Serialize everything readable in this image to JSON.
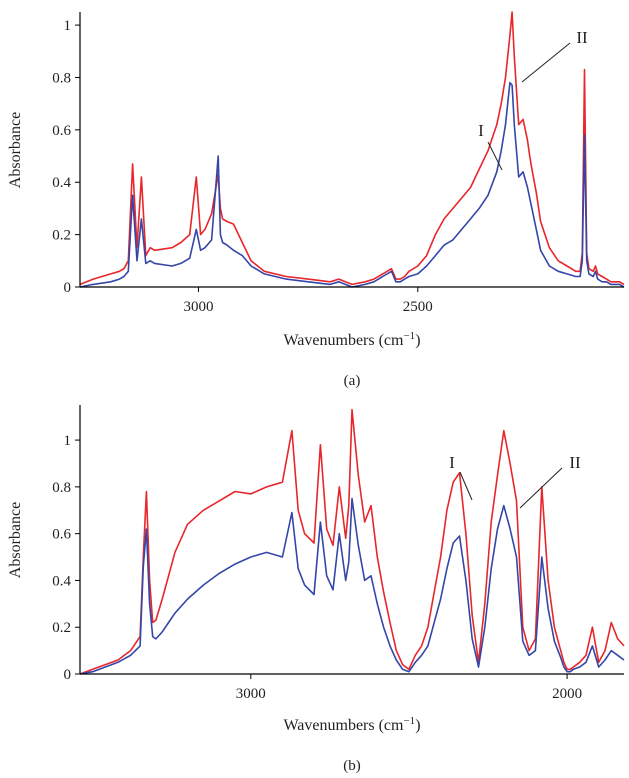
{
  "colors": {
    "series_I": "#e8262b",
    "series_II": "#3446a8",
    "axis": "#000000"
  },
  "chart_data": [
    {
      "panel": "(a)",
      "type": "line",
      "xlabel": "Wavenumbers (cm−1)",
      "ylabel": "Absorbance",
      "xlim": [
        3270,
        2030
      ],
      "ylim": [
        0,
        1.05
      ],
      "xticks": [
        3000,
        2500
      ],
      "yticks": [
        0,
        0.2,
        0.4,
        0.6,
        0.8,
        1
      ],
      "ytick_labels": [
        "0",
        "0.2",
        "0.4",
        "0.6",
        "0.8",
        "1"
      ],
      "grid": false,
      "annotations": [
        {
          "text": "I",
          "series": 0
        },
        {
          "text": "II",
          "series": 1
        }
      ],
      "series": [
        {
          "label": "I",
          "color": "#e8262b",
          "x": [
            3270,
            3240,
            3200,
            3180,
            3170,
            3160,
            3150,
            3140,
            3130,
            3120,
            3110,
            3100,
            3060,
            3040,
            3020,
            3005,
            2995,
            2985,
            2970,
            2955,
            2950,
            2945,
            2935,
            2920,
            2900,
            2880,
            2850,
            2800,
            2750,
            2700,
            2680,
            2665,
            2650,
            2620,
            2600,
            2580,
            2560,
            2555,
            2550,
            2540,
            2530,
            2520,
            2500,
            2480,
            2460,
            2440,
            2420,
            2400,
            2380,
            2360,
            2340,
            2320,
            2310,
            2300,
            2295,
            2290,
            2285,
            2280,
            2270,
            2260,
            2250,
            2245,
            2240,
            2230,
            2220,
            2200,
            2180,
            2160,
            2140,
            2130,
            2125,
            2120,
            2115,
            2110,
            2100,
            2095,
            2090,
            2080,
            2070,
            2060,
            2050,
            2040,
            2030
          ],
          "y": [
            0.01,
            0.03,
            0.05,
            0.06,
            0.07,
            0.1,
            0.47,
            0.15,
            0.42,
            0.12,
            0.15,
            0.14,
            0.15,
            0.17,
            0.2,
            0.42,
            0.2,
            0.22,
            0.28,
            0.43,
            0.3,
            0.26,
            0.25,
            0.24,
            0.17,
            0.1,
            0.06,
            0.04,
            0.03,
            0.02,
            0.03,
            0.02,
            0.01,
            0.02,
            0.03,
            0.05,
            0.07,
            0.05,
            0.03,
            0.03,
            0.04,
            0.06,
            0.08,
            0.12,
            0.2,
            0.26,
            0.3,
            0.34,
            0.38,
            0.45,
            0.52,
            0.62,
            0.7,
            0.8,
            0.88,
            0.96,
            1.05,
            0.88,
            0.62,
            0.64,
            0.56,
            0.5,
            0.45,
            0.36,
            0.25,
            0.15,
            0.1,
            0.08,
            0.06,
            0.06,
            0.13,
            0.83,
            0.13,
            0.07,
            0.06,
            0.08,
            0.05,
            0.04,
            0.03,
            0.02,
            0.02,
            0.02,
            0.01
          ]
        },
        {
          "label": "II",
          "color": "#3446a8",
          "x": [
            3270,
            3240,
            3200,
            3180,
            3170,
            3160,
            3150,
            3140,
            3130,
            3120,
            3110,
            3100,
            3060,
            3040,
            3020,
            3005,
            2995,
            2985,
            2970,
            2955,
            2950,
            2945,
            2935,
            2920,
            2900,
            2880,
            2850,
            2800,
            2750,
            2700,
            2680,
            2665,
            2650,
            2620,
            2600,
            2580,
            2560,
            2555,
            2550,
            2540,
            2530,
            2520,
            2500,
            2480,
            2460,
            2440,
            2420,
            2400,
            2380,
            2360,
            2340,
            2320,
            2310,
            2300,
            2295,
            2290,
            2285,
            2280,
            2270,
            2260,
            2250,
            2245,
            2240,
            2230,
            2220,
            2200,
            2180,
            2160,
            2140,
            2130,
            2125,
            2120,
            2115,
            2110,
            2100,
            2095,
            2090,
            2080,
            2070,
            2060,
            2050,
            2040,
            2030
          ],
          "y": [
            0.0,
            0.01,
            0.02,
            0.03,
            0.04,
            0.06,
            0.35,
            0.1,
            0.26,
            0.09,
            0.1,
            0.09,
            0.08,
            0.09,
            0.11,
            0.22,
            0.14,
            0.15,
            0.18,
            0.5,
            0.2,
            0.17,
            0.16,
            0.14,
            0.12,
            0.08,
            0.05,
            0.03,
            0.02,
            0.01,
            0.02,
            0.01,
            0.0,
            0.01,
            0.02,
            0.04,
            0.06,
            0.04,
            0.02,
            0.02,
            0.03,
            0.04,
            0.05,
            0.08,
            0.12,
            0.16,
            0.18,
            0.22,
            0.26,
            0.3,
            0.35,
            0.44,
            0.52,
            0.62,
            0.7,
            0.78,
            0.77,
            0.62,
            0.42,
            0.44,
            0.38,
            0.34,
            0.3,
            0.22,
            0.14,
            0.08,
            0.06,
            0.05,
            0.04,
            0.04,
            0.1,
            0.58,
            0.1,
            0.05,
            0.04,
            0.06,
            0.03,
            0.02,
            0.02,
            0.01,
            0.01,
            0.01,
            0.0
          ]
        }
      ]
    },
    {
      "panel": "(b)",
      "type": "line",
      "xlabel": "Wavenumbers (cm−1)",
      "ylabel": "Absorbance",
      "xlim": [
        3540,
        1820
      ],
      "ylim": [
        0,
        1.15
      ],
      "xticks": [
        3000,
        2000
      ],
      "yticks": [
        0,
        0.2,
        0.4,
        0.6,
        0.8,
        1
      ],
      "ytick_labels": [
        "0",
        "0.2",
        "0.4",
        "0.6",
        "0.8",
        "1"
      ],
      "grid": false,
      "annotations": [
        {
          "text": "I",
          "series": 0
        },
        {
          "text": "II",
          "series": 1
        }
      ],
      "series": [
        {
          "label": "I",
          "color": "#e8262b",
          "x": [
            3540,
            3500,
            3460,
            3420,
            3380,
            3350,
            3340,
            3330,
            3320,
            3310,
            3300,
            3280,
            3260,
            3240,
            3200,
            3150,
            3100,
            3050,
            3000,
            2950,
            2900,
            2870,
            2850,
            2830,
            2800,
            2780,
            2760,
            2740,
            2720,
            2700,
            2690,
            2680,
            2660,
            2640,
            2620,
            2600,
            2580,
            2560,
            2540,
            2520,
            2500,
            2480,
            2460,
            2440,
            2420,
            2400,
            2380,
            2360,
            2340,
            2320,
            2300,
            2280,
            2260,
            2240,
            2220,
            2200,
            2180,
            2160,
            2140,
            2120,
            2100,
            2080,
            2060,
            2040,
            2020,
            2010,
            2000,
            1990,
            1980,
            1960,
            1940,
            1920,
            1900,
            1880,
            1860,
            1840,
            1820
          ],
          "y": [
            0.0,
            0.02,
            0.04,
            0.06,
            0.1,
            0.16,
            0.5,
            0.78,
            0.4,
            0.22,
            0.23,
            0.32,
            0.42,
            0.52,
            0.64,
            0.7,
            0.74,
            0.78,
            0.77,
            0.8,
            0.82,
            1.04,
            0.7,
            0.6,
            0.56,
            0.98,
            0.62,
            0.55,
            0.8,
            0.58,
            0.72,
            1.13,
            0.85,
            0.65,
            0.72,
            0.5,
            0.35,
            0.22,
            0.1,
            0.04,
            0.02,
            0.08,
            0.12,
            0.2,
            0.35,
            0.5,
            0.7,
            0.82,
            0.86,
            0.6,
            0.25,
            0.05,
            0.3,
            0.65,
            0.85,
            1.04,
            0.9,
            0.74,
            0.2,
            0.1,
            0.15,
            0.8,
            0.4,
            0.2,
            0.1,
            0.05,
            0.02,
            0.02,
            0.03,
            0.05,
            0.08,
            0.2,
            0.05,
            0.1,
            0.22,
            0.15,
            0.12
          ]
        },
        {
          "label": "II",
          "color": "#3446a8",
          "x": [
            3540,
            3500,
            3460,
            3420,
            3380,
            3350,
            3340,
            3330,
            3320,
            3310,
            3300,
            3280,
            3260,
            3240,
            3200,
            3150,
            3100,
            3050,
            3000,
            2950,
            2900,
            2870,
            2850,
            2830,
            2800,
            2780,
            2760,
            2740,
            2720,
            2700,
            2690,
            2680,
            2660,
            2640,
            2620,
            2600,
            2580,
            2560,
            2540,
            2520,
            2500,
            2480,
            2460,
            2440,
            2420,
            2400,
            2380,
            2360,
            2340,
            2320,
            2300,
            2280,
            2260,
            2240,
            2220,
            2200,
            2180,
            2160,
            2140,
            2120,
            2100,
            2080,
            2060,
            2040,
            2020,
            2010,
            2000,
            1990,
            1980,
            1960,
            1940,
            1920,
            1900,
            1880,
            1860,
            1840,
            1820
          ],
          "y": [
            0.0,
            0.01,
            0.03,
            0.05,
            0.08,
            0.12,
            0.46,
            0.62,
            0.3,
            0.16,
            0.15,
            0.18,
            0.22,
            0.26,
            0.32,
            0.38,
            0.43,
            0.47,
            0.5,
            0.52,
            0.5,
            0.69,
            0.45,
            0.38,
            0.34,
            0.65,
            0.42,
            0.36,
            0.6,
            0.4,
            0.48,
            0.75,
            0.55,
            0.4,
            0.42,
            0.3,
            0.2,
            0.12,
            0.06,
            0.02,
            0.01,
            0.05,
            0.08,
            0.12,
            0.22,
            0.32,
            0.45,
            0.56,
            0.59,
            0.4,
            0.15,
            0.03,
            0.2,
            0.45,
            0.62,
            0.72,
            0.62,
            0.5,
            0.14,
            0.08,
            0.1,
            0.5,
            0.28,
            0.14,
            0.07,
            0.03,
            0.01,
            0.01,
            0.02,
            0.03,
            0.05,
            0.12,
            0.03,
            0.06,
            0.1,
            0.08,
            0.06
          ]
        }
      ]
    }
  ]
}
